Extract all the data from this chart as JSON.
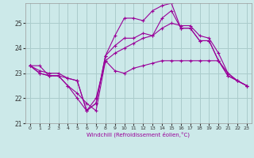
{
  "title": "",
  "xlabel": "Windchill (Refroidissement éolien,°C)",
  "ylabel": "",
  "bg_color": "#cce9e9",
  "line_color": "#990099",
  "grid_color": "#aacccc",
  "xlim": [
    -0.5,
    23.5
  ],
  "ylim": [
    21,
    25.8
  ],
  "xticks": [
    0,
    1,
    2,
    3,
    4,
    5,
    6,
    7,
    8,
    9,
    10,
    11,
    12,
    13,
    14,
    15,
    16,
    17,
    18,
    19,
    20,
    21,
    22,
    23
  ],
  "yticks": [
    21,
    22,
    23,
    24,
    25
  ],
  "series": [
    {
      "x": [
        0,
        1,
        2,
        3,
        4,
        5,
        6,
        7,
        8,
        9,
        10,
        11,
        12,
        13,
        14,
        15,
        16,
        17,
        18,
        19,
        20,
        21,
        22,
        23
      ],
      "y": [
        23.3,
        23.3,
        22.9,
        22.9,
        22.5,
        22.2,
        21.8,
        21.5,
        23.5,
        23.1,
        23.0,
        23.2,
        23.3,
        23.4,
        23.5,
        23.5,
        23.5,
        23.5,
        23.5,
        23.5,
        23.5,
        23.0,
        22.7,
        22.5
      ]
    },
    {
      "x": [
        0,
        1,
        2,
        3,
        4,
        5,
        6,
        7,
        8,
        9,
        10,
        11,
        12,
        13,
        14,
        15,
        16,
        17,
        18,
        19,
        20,
        21,
        22,
        23
      ],
      "y": [
        23.3,
        23.0,
        22.9,
        22.9,
        22.8,
        22.7,
        21.5,
        21.8,
        23.7,
        24.1,
        24.4,
        24.4,
        24.6,
        24.5,
        25.2,
        25.5,
        24.8,
        24.8,
        24.3,
        24.3,
        23.5,
        22.9,
        22.7,
        22.5
      ]
    },
    {
      "x": [
        0,
        1,
        2,
        3,
        4,
        5,
        6,
        7,
        8,
        9,
        10,
        11,
        12,
        13,
        14,
        15,
        16,
        17,
        18,
        19,
        20,
        21,
        22,
        23
      ],
      "y": [
        23.3,
        23.0,
        22.9,
        22.9,
        22.5,
        22.0,
        21.5,
        21.8,
        23.7,
        24.5,
        25.2,
        25.2,
        25.1,
        25.5,
        25.7,
        25.8,
        24.8,
        24.8,
        24.3,
        24.3,
        23.5,
        22.9,
        22.7,
        22.5
      ]
    },
    {
      "x": [
        0,
        1,
        2,
        3,
        4,
        5,
        6,
        7,
        8,
        9,
        10,
        11,
        12,
        13,
        14,
        15,
        16,
        17,
        18,
        19,
        20,
        21,
        22,
        23
      ],
      "y": [
        23.3,
        23.1,
        23.0,
        23.0,
        22.8,
        22.7,
        21.5,
        22.0,
        23.5,
        23.8,
        24.0,
        24.2,
        24.4,
        24.5,
        24.8,
        25.0,
        24.9,
        24.9,
        24.5,
        24.4,
        23.8,
        23.0,
        22.7,
        22.5
      ]
    }
  ]
}
